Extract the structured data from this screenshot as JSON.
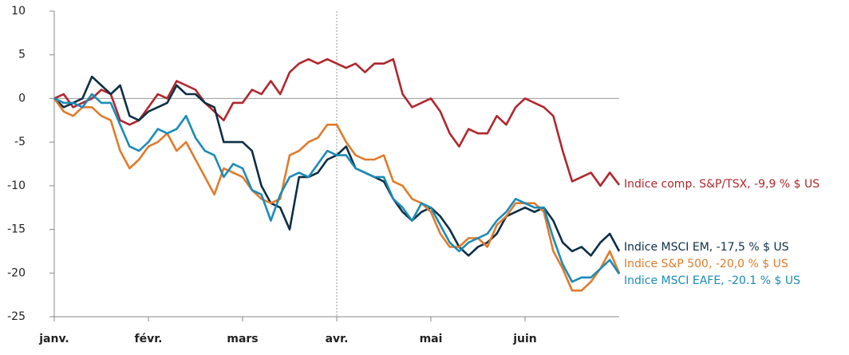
{
  "chart_data": {
    "type": "line",
    "categories": [
      "janv.",
      null,
      null,
      null,
      null,
      null,
      null,
      null,
      null,
      null,
      "févr.",
      null,
      null,
      null,
      null,
      null,
      null,
      null,
      null,
      null,
      "mars",
      null,
      null,
      null,
      null,
      null,
      null,
      null,
      null,
      null,
      "avr.",
      null,
      null,
      null,
      null,
      null,
      null,
      null,
      null,
      null,
      "mai",
      null,
      null,
      null,
      null,
      null,
      null,
      null,
      null,
      null,
      "juin",
      null,
      null,
      null,
      null,
      null,
      null,
      null,
      null,
      null,
      null
    ],
    "series": [
      {
        "name": "Indice comp. S&P/TSX, -9,9 % $ US",
        "color": "#b0272d",
        "values": [
          0,
          0.5,
          -1,
          -0.5,
          0,
          1,
          0.5,
          -2.5,
          -3,
          -2.5,
          -1,
          0.5,
          0,
          2,
          1.5,
          1,
          -0.5,
          -1.5,
          -2.5,
          -0.5,
          -0.5,
          1,
          0.5,
          2,
          0.5,
          3,
          4,
          4.5,
          4,
          4.5,
          4,
          3.5,
          4,
          3,
          4,
          4,
          4.5,
          0.5,
          -1,
          -0.5,
          0,
          -1.5,
          -4,
          -5.5,
          -3.5,
          -4,
          -4,
          -2,
          -3,
          -1,
          0,
          -0.5,
          -1,
          -2,
          -6,
          -9.5,
          -9,
          -8.5,
          -10,
          -8.5,
          -9.9
        ]
      },
      {
        "name": "Indice MSCI EM, -17,5 % $ US",
        "color": "#0d2f45",
        "values": [
          0,
          -1,
          -0.5,
          0,
          2.5,
          1.5,
          0.5,
          1.5,
          -2,
          -2.5,
          -1.5,
          -1,
          -0.5,
          1.5,
          0.5,
          0.5,
          -0.5,
          -1,
          -5,
          -5,
          -5,
          -6,
          -10,
          -12,
          -12.5,
          -15,
          -9,
          -9,
          -8.5,
          -7,
          -6.5,
          -5.5,
          -8,
          -8.5,
          -9,
          -9.5,
          -11.5,
          -13,
          -14,
          -13,
          -12.5,
          -13.5,
          -15,
          -17,
          -18,
          -17,
          -16.5,
          -15.5,
          -13.5,
          -13,
          -12.5,
          -13,
          -12.5,
          -14,
          -16.5,
          -17.5,
          -17,
          -18,
          -16.5,
          -15.5,
          -17.5
        ]
      },
      {
        "name": "Indice S&P 500, -20,0 % $ US",
        "color": "#e07b2a",
        "values": [
          0,
          -1.5,
          -2,
          -1,
          -1,
          -2,
          -2.5,
          -6,
          -8,
          -7,
          -5.5,
          -5,
          -4,
          -6,
          -5,
          -7,
          -9,
          -11,
          -8,
          -8.5,
          -9,
          -10.5,
          -11.5,
          -12,
          -11.5,
          -6.5,
          -6,
          -5,
          -4.5,
          -3,
          -3,
          -5,
          -6.5,
          -7,
          -7,
          -6.5,
          -9.5,
          -10,
          -11.5,
          -12,
          -13,
          -15.5,
          -17,
          -17,
          -16,
          -16,
          -17,
          -14.5,
          -13.5,
          -12,
          -12,
          -12,
          -13,
          -17.5,
          -19.5,
          -22,
          -22,
          -21,
          -19.5,
          -17.5,
          -20
        ]
      },
      {
        "name": "Indice MSCI EAFE, -20.1 % $ US",
        "color": "#1b8bb8",
        "values": [
          0,
          -0.5,
          -0.5,
          -1,
          0.5,
          -0.5,
          -0.5,
          -3,
          -5.5,
          -6,
          -5,
          -3.5,
          -4,
          -3.5,
          -2,
          -4.5,
          -6,
          -6.5,
          -9,
          -7.5,
          -8,
          -10.5,
          -11,
          -14,
          -11,
          -9,
          -8.5,
          -9,
          -7.5,
          -6,
          -6.5,
          -6.5,
          -8,
          -8.5,
          -9,
          -9,
          -11.5,
          -12.5,
          -14,
          -12,
          -12.5,
          -14.5,
          -16.5,
          -17.5,
          -16.5,
          -16,
          -15.5,
          -14,
          -13,
          -11.5,
          -12,
          -12.5,
          -12.5,
          -16,
          -19,
          -21,
          -20.5,
          -20.5,
          -19.5,
          -18.5,
          -20.1
        ]
      }
    ],
    "ylim": [
      -25,
      10
    ],
    "yticks": [
      10,
      5,
      0,
      -5,
      -10,
      -15,
      -20,
      -25
    ]
  }
}
